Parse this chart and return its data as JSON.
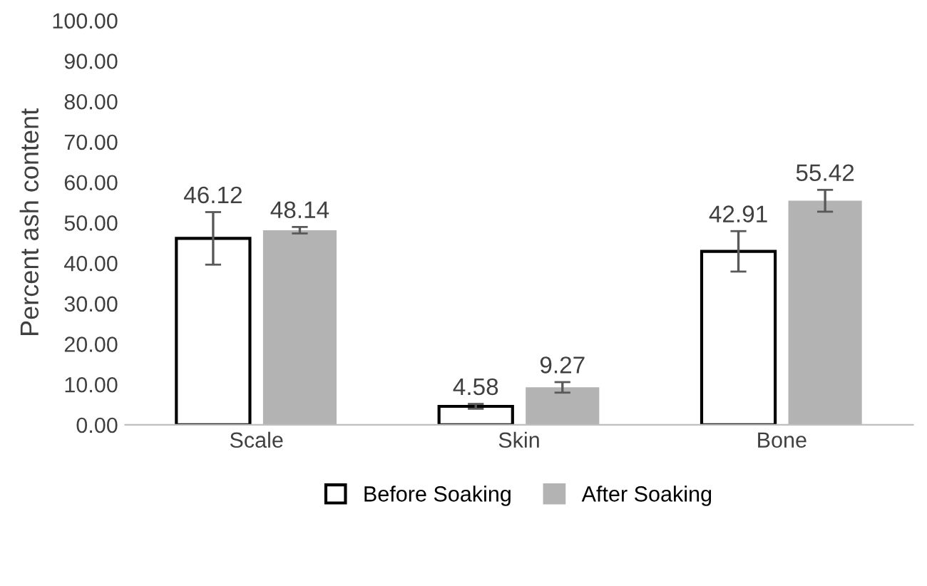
{
  "chart_data": {
    "type": "bar",
    "ylabel": "Percent ash content",
    "categories": [
      "Scale",
      "Skin",
      "Bone"
    ],
    "series": [
      {
        "name": "Before Soaking",
        "color": "#ffffff",
        "values": [
          46.12,
          4.58,
          42.91
        ],
        "errors": [
          6.5,
          0.6,
          5.0
        ]
      },
      {
        "name": "After Soaking",
        "color": "#b3b3b3",
        "values": [
          48.14,
          9.27,
          55.42
        ],
        "errors": [
          0.8,
          1.3,
          2.7
        ]
      }
    ],
    "ylim": [
      0,
      100
    ],
    "yticks": [
      {
        "value": 0,
        "label": "0.00"
      },
      {
        "value": 10,
        "label": "10.00"
      },
      {
        "value": 20,
        "label": "20.00"
      },
      {
        "value": 30,
        "label": "30.00"
      },
      {
        "value": 40,
        "label": "40.00"
      },
      {
        "value": 50,
        "label": "50.00"
      },
      {
        "value": 60,
        "label": "60.00"
      },
      {
        "value": 70,
        "label": "70.00"
      },
      {
        "value": 80,
        "label": "80.00"
      },
      {
        "value": 90,
        "label": "90.00"
      },
      {
        "value": 100,
        "label": "100.00"
      }
    ],
    "data_labels": true,
    "grid": false,
    "legend": "bottom"
  }
}
